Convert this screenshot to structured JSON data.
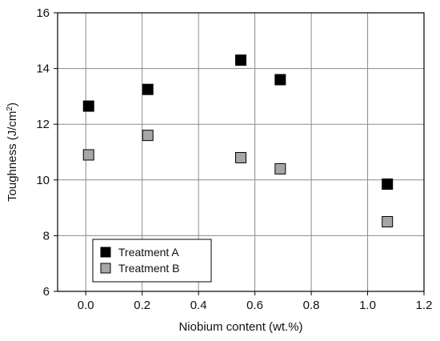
{
  "chart_data": {
    "type": "scatter",
    "title": "",
    "xlabel": "Niobium content (wt.%)",
    "ylabel": "Toughness (J/cm²)",
    "xlim": [
      -0.1,
      1.2
    ],
    "ylim": [
      6,
      16
    ],
    "xticks": [
      "0.0",
      "0.2",
      "0.4",
      "0.6",
      "0.8",
      "1.0",
      "1.2"
    ],
    "yticks": [
      "6",
      "8",
      "10",
      "12",
      "14",
      "16"
    ],
    "grid": true,
    "legend_position": "bottom-left",
    "series": [
      {
        "name": "Treatment A",
        "color": "#000000",
        "marker": "square",
        "points": [
          {
            "x": 0.01,
            "y": 12.65
          },
          {
            "x": 0.22,
            "y": 13.25
          },
          {
            "x": 0.55,
            "y": 14.3
          },
          {
            "x": 0.69,
            "y": 13.6
          },
          {
            "x": 1.07,
            "y": 9.85
          }
        ]
      },
      {
        "name": "Treatment B",
        "color": "#a6a6a6",
        "marker": "square",
        "points": [
          {
            "x": 0.01,
            "y": 10.9
          },
          {
            "x": 0.22,
            "y": 11.6
          },
          {
            "x": 0.55,
            "y": 10.8
          },
          {
            "x": 0.69,
            "y": 10.4
          },
          {
            "x": 1.07,
            "y": 8.5
          }
        ]
      }
    ]
  }
}
